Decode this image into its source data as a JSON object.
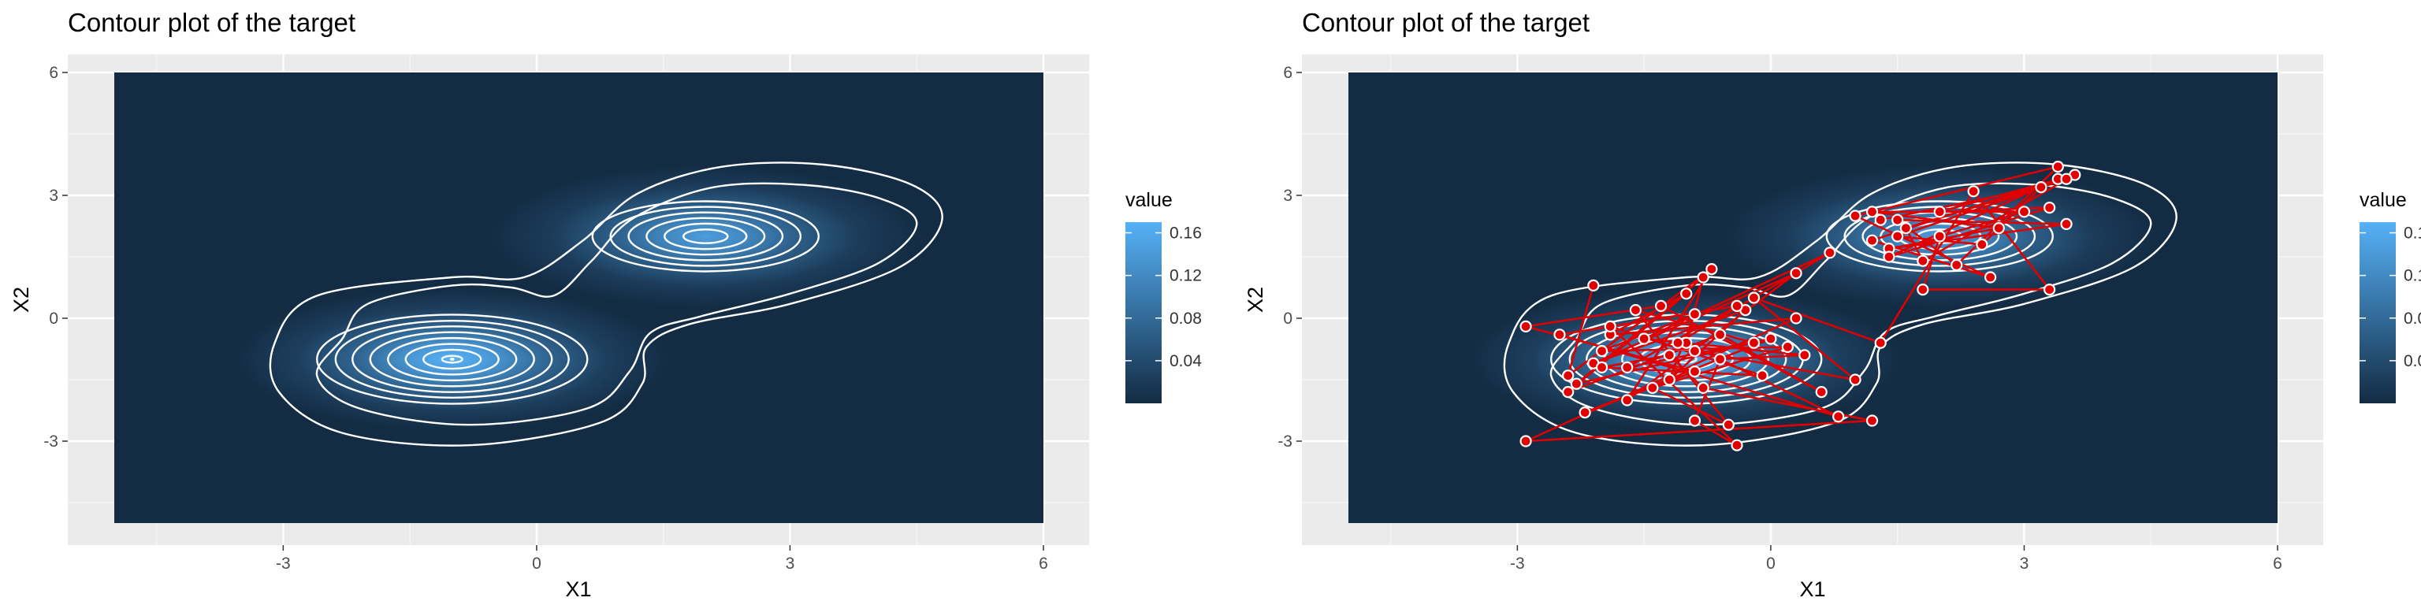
{
  "chart_data": [
    {
      "type": "heatmap",
      "title": "Contour plot of the target",
      "xlabel": "X1",
      "ylabel": "X2",
      "xlim": [
        -5,
        6
      ],
      "ylim": [
        -5,
        6
      ],
      "x_ticks": [
        "-3",
        "0",
        "3",
        "6"
      ],
      "y_ticks": [
        "-3",
        "0",
        "3",
        "6"
      ],
      "legend": {
        "title": "value",
        "placement": "right",
        "ticks": [
          "0.04",
          "0.08",
          "0.12",
          "0.16"
        ],
        "tick_values": [
          0.04,
          0.08,
          0.12,
          0.16
        ],
        "range": [
          0.0,
          0.17
        ]
      },
      "grid": true,
      "density_modes": [
        {
          "center": [
            -1,
            -1
          ],
          "peak_value": 0.165
        },
        {
          "center": [
            2,
            2
          ],
          "peak_value": 0.14
        }
      ],
      "contour_color": "#ffffff",
      "fill_low": "#132B43",
      "fill_high": "#56B1F7"
    },
    {
      "type": "heatmap",
      "title": "Contour plot of the target",
      "xlabel": "X1",
      "ylabel": "X2",
      "xlim": [
        -5,
        6
      ],
      "ylim": [
        -5,
        6
      ],
      "x_ticks": [
        "-3",
        "0",
        "3",
        "6"
      ],
      "y_ticks": [
        "-3",
        "0",
        "3",
        "6"
      ],
      "legend": {
        "title": "value",
        "placement": "right",
        "ticks": [
          "0.04",
          "0.08",
          "0.12",
          "0.16"
        ],
        "tick_values": [
          0.04,
          0.08,
          0.12,
          0.16
        ],
        "range": [
          0.0,
          0.17
        ]
      },
      "grid": true,
      "density_modes": [
        {
          "center": [
            -1,
            -1
          ],
          "peak_value": 0.165
        },
        {
          "center": [
            2,
            2
          ],
          "peak_value": 0.14
        }
      ],
      "contour_color": "#ffffff",
      "fill_low": "#132B43",
      "fill_high": "#56B1F7",
      "path_color": "#e00000",
      "point_color": "#e00000",
      "path": [
        [
          -2.1,
          0.8
        ],
        [
          -2.4,
          -1.4
        ],
        [
          -0.7,
          1.2
        ],
        [
          -1.7,
          -2.0
        ],
        [
          0.3,
          1.1
        ],
        [
          -2.1,
          -1.1
        ],
        [
          -0.3,
          0.2
        ],
        [
          -1.2,
          -1.5
        ],
        [
          -0.9,
          0.1
        ],
        [
          -2.0,
          -0.8
        ],
        [
          0.2,
          -0.7
        ],
        [
          -1.4,
          -1.7
        ],
        [
          -0.5,
          -2.6
        ],
        [
          -1.6,
          0.2
        ],
        [
          -0.2,
          -0.6
        ],
        [
          -2.3,
          -1.6
        ],
        [
          -0.8,
          1.0
        ],
        [
          -1.0,
          -0.6
        ],
        [
          0.8,
          -2.4
        ],
        [
          -2.5,
          -0.4
        ],
        [
          -0.4,
          0.3
        ],
        [
          -1.7,
          -1.2
        ],
        [
          0.0,
          -0.5
        ],
        [
          -2.2,
          -2.3
        ],
        [
          -0.9,
          -1.3
        ],
        [
          -2.9,
          -0.2
        ],
        [
          -1.3,
          0.3
        ],
        [
          0.6,
          -1.8
        ],
        [
          -0.6,
          -0.4
        ],
        [
          -2.4,
          -1.8
        ],
        [
          -1.0,
          0.6
        ],
        [
          -1.9,
          -0.4
        ],
        [
          0.3,
          0.0
        ],
        [
          -2.9,
          -3.0
        ],
        [
          1.2,
          -2.5
        ],
        [
          -0.8,
          -1.7
        ],
        [
          -1.2,
          -0.9
        ],
        [
          -2.0,
          -1.2
        ],
        [
          -0.1,
          -1.4
        ],
        [
          -1.9,
          -0.2
        ],
        [
          -0.4,
          -3.1
        ],
        [
          -0.9,
          -2.5
        ],
        [
          -0.6,
          -1.0
        ],
        [
          0.4,
          -0.9
        ],
        [
          -1.5,
          -0.5
        ],
        [
          0.7,
          1.6
        ],
        [
          -1.1,
          -0.6
        ],
        [
          -0.9,
          -0.8
        ],
        [
          1.0,
          -1.5
        ],
        [
          -0.2,
          0.5
        ],
        [
          1.3,
          -0.6
        ],
        [
          2.4,
          3.1
        ],
        [
          3.3,
          0.7
        ],
        [
          1.8,
          0.7
        ],
        [
          2.0,
          2.0
        ],
        [
          3.0,
          2.6
        ],
        [
          1.2,
          2.6
        ],
        [
          2.7,
          2.2
        ],
        [
          1.4,
          1.7
        ],
        [
          3.5,
          2.3
        ],
        [
          1.5,
          2.4
        ],
        [
          2.2,
          1.3
        ],
        [
          3.4,
          3.7
        ],
        [
          1.0,
          2.5
        ],
        [
          2.6,
          1.0
        ],
        [
          1.2,
          1.9
        ],
        [
          3.4,
          3.4
        ],
        [
          1.4,
          1.5
        ],
        [
          3.3,
          2.7
        ],
        [
          2.0,
          2.6
        ],
        [
          3.6,
          3.5
        ],
        [
          1.8,
          1.4
        ],
        [
          1.6,
          2.2
        ],
        [
          3.5,
          3.4
        ],
        [
          1.5,
          2.0
        ],
        [
          2.5,
          1.8
        ],
        [
          3.2,
          3.2
        ],
        [
          1.3,
          2.4
        ]
      ]
    }
  ]
}
